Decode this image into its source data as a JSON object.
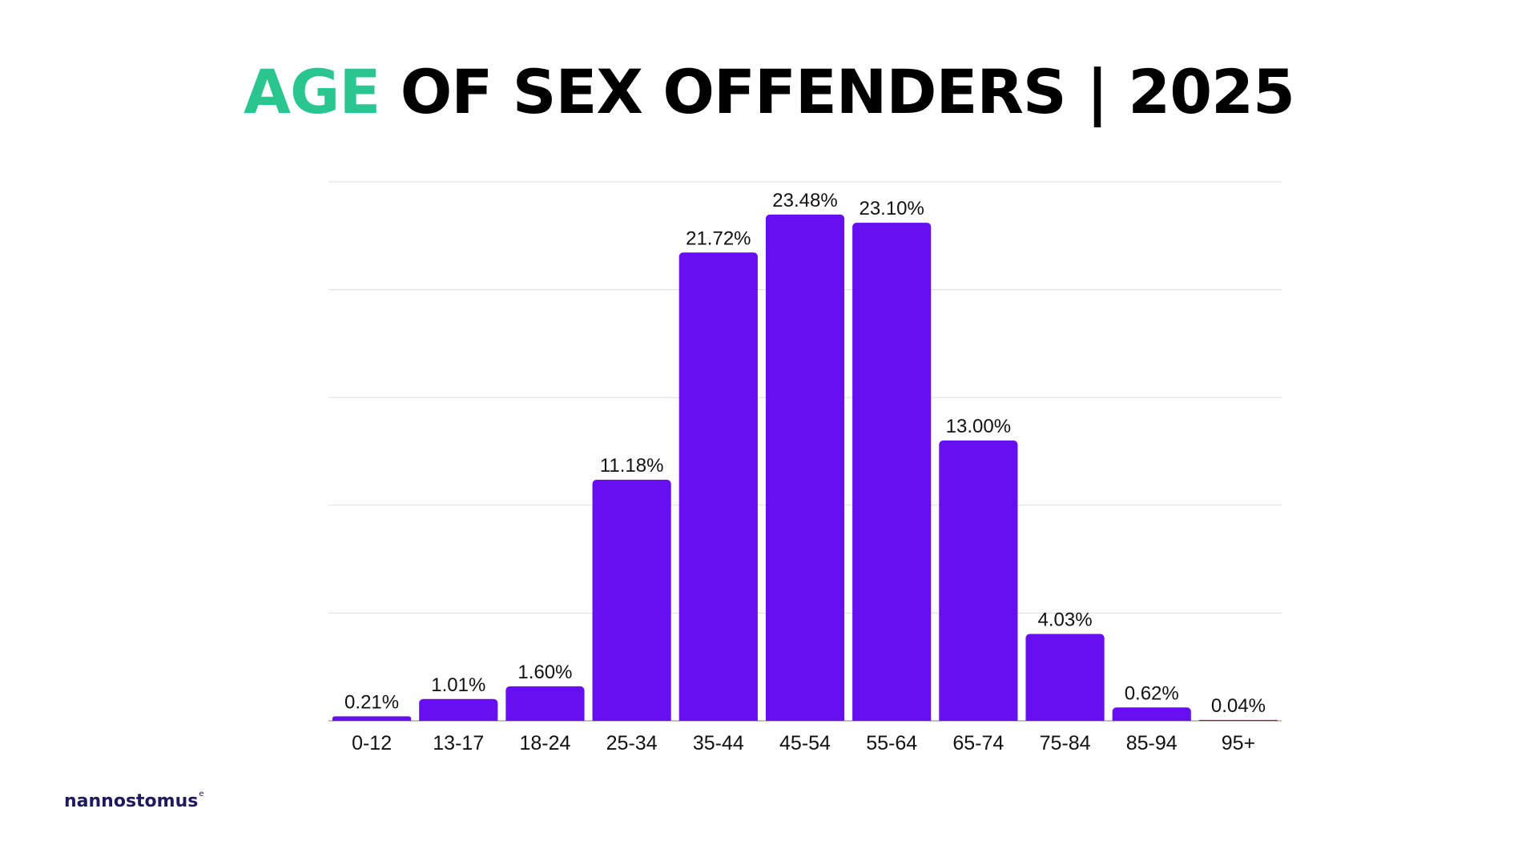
{
  "header": {
    "title_accent": "AGE",
    "title_rest": " OF SEX OFFENDERS | 2025"
  },
  "brand": {
    "logo_text": "nannostomus",
    "logo_mark": "e"
  },
  "colors": {
    "accent": "#2bc590",
    "bar": "#6610f2",
    "gridline": "#dddddd",
    "title": "#000000",
    "logo": "#1f1a5e"
  },
  "chart_data": {
    "type": "bar",
    "categories": [
      "0-12",
      "13-17",
      "18-24",
      "25-34",
      "35-44",
      "45-54",
      "55-64",
      "65-74",
      "75-84",
      "85-94",
      "95+"
    ],
    "values": [
      0.21,
      1.01,
      1.6,
      11.18,
      21.72,
      23.48,
      23.1,
      13.0,
      4.03,
      0.62,
      0.04
    ],
    "data_labels": [
      "0.21%",
      "1.01%",
      "1.60%",
      "11.18%",
      "21.72%",
      "23.48%",
      "23.10%",
      "13.00%",
      "4.03%",
      "0.62%",
      "0.04%"
    ],
    "title": "AGE OF SEX OFFENDERS | 2025",
    "xlabel": "",
    "ylabel": "",
    "ylim": [
      0,
      25
    ],
    "grid": true,
    "legend": "none"
  }
}
